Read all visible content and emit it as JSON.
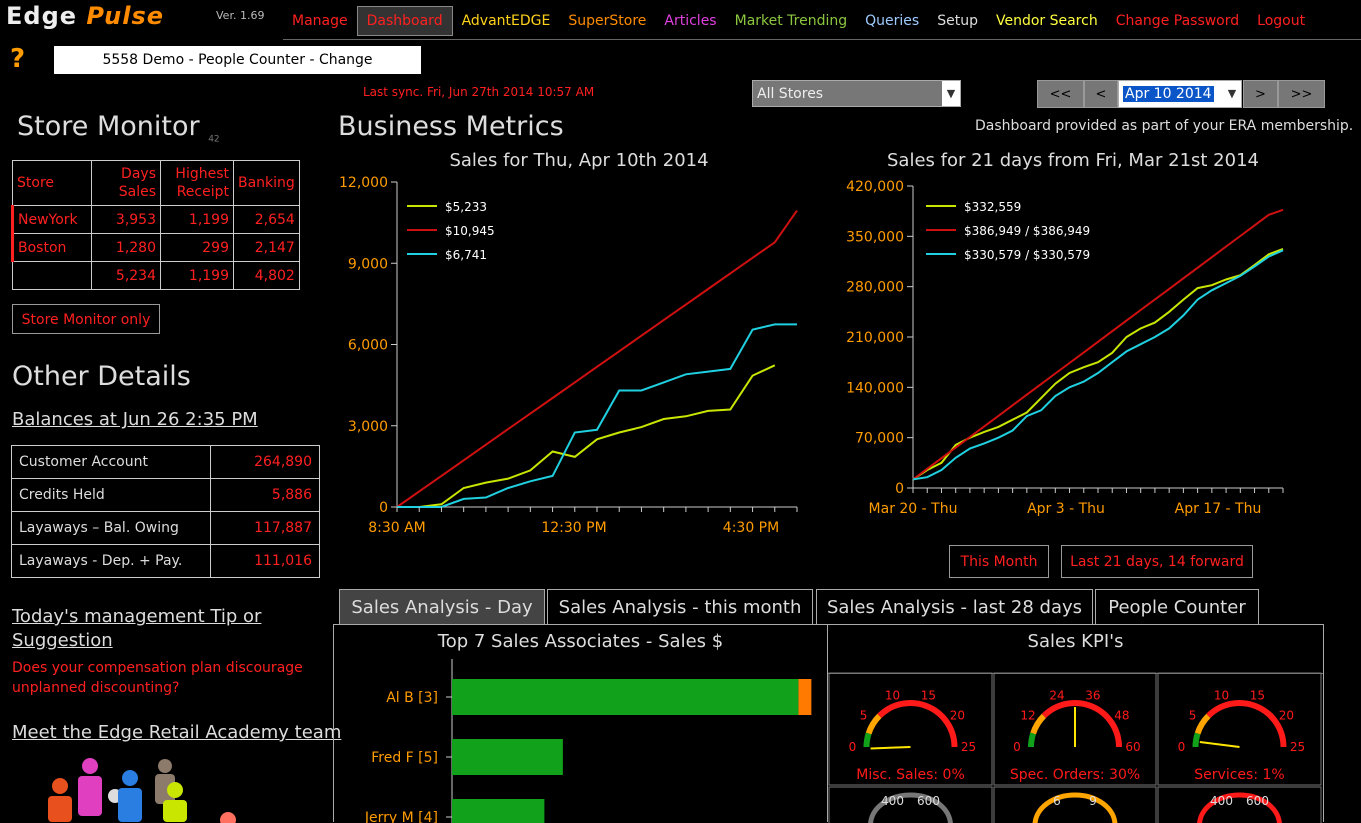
{
  "app": {
    "logo_a": "Edge",
    "logo_b": "Pulse",
    "version": "Ver. 1.69"
  },
  "nav": [
    {
      "label": "Manage",
      "color": "#ff2020"
    },
    {
      "label": "Dashboard",
      "color": "#ff2020"
    },
    {
      "label": "AdvantEDGE",
      "color": "#ffd21a"
    },
    {
      "label": "SuperStore",
      "color": "#ff8c00"
    },
    {
      "label": "Articles",
      "color": "#e040e0"
    },
    {
      "label": "Market Trending",
      "color": "#8cc63f"
    },
    {
      "label": "Queries",
      "color": "#9ecbff"
    },
    {
      "label": "Setup",
      "color": "#dddddd"
    },
    {
      "label": "Vendor Search",
      "color": "#ffff40"
    },
    {
      "label": "Change Password",
      "color": "#ff2020"
    },
    {
      "label": "Logout",
      "color": "#ff2020"
    }
  ],
  "header": {
    "store_name": "5558 Demo - People Counter - Change",
    "last_sync": "Last sync. Fri, Jun 27th 2014 10:57 AM",
    "store_select": "All Stores",
    "date_prev2": "<<",
    "date_prev": "<",
    "date_value": "Apr 10 2014",
    "date_next": ">",
    "date_next2": ">>",
    "era_info": "Dashboard provided as part of your ERA membership."
  },
  "store_monitor": {
    "title": "Store Monitor",
    "count": "42",
    "headers": [
      "Store",
      "Days Sales",
      "Highest Receipt",
      "Banking"
    ],
    "rows": [
      [
        "NewYork",
        "3,953",
        "1,199",
        "2,654"
      ],
      [
        "Boston",
        "1,280",
        "299",
        "2,147"
      ],
      [
        "",
        "5,234",
        "1,199",
        "4,802"
      ]
    ],
    "only_button": "Store Monitor only"
  },
  "other": {
    "title": "Other Details",
    "balances_link": "Balances at Jun 26 2:35 PM",
    "balances": [
      [
        "Customer Account",
        "264,890"
      ],
      [
        "Credits Held",
        "5,886"
      ],
      [
        "Layaways – Bal. Owing",
        "117,887"
      ],
      [
        "Layaways - Dep. + Pay.",
        "111,016"
      ]
    ],
    "tip_title": "Today's management Tip or Suggestion",
    "tip_text": "Does your compensation plan discourage unplanned discounting?",
    "team_link": "Meet the Edge Retail Academy team"
  },
  "metrics": {
    "title": "Business Metrics",
    "btn_month": "This Month",
    "btn_21": "Last 21 days, 14 forward"
  },
  "chart_data": [
    {
      "type": "line",
      "title": "Sales for Thu, Apr 10th 2014",
      "x": [
        "8:30",
        "9:00",
        "9:30",
        "10:00",
        "10:30",
        "11:00",
        "11:30",
        "12:00",
        "12:30",
        "13:00",
        "13:30",
        "14:00",
        "14:30",
        "15:00",
        "15:30",
        "16:00",
        "16:30",
        "17:00",
        "17:30"
      ],
      "x_ticks": [
        "8:30 AM",
        "12:30 PM",
        "4:30 PM"
      ],
      "ylim": [
        0,
        12000
      ],
      "y_ticks": [
        "0",
        "3,000",
        "6,000",
        "9,000",
        "12,000"
      ],
      "series": [
        {
          "name": "$5,233",
          "color": "#c8e600",
          "values": [
            0,
            0,
            100,
            700,
            900,
            1050,
            1350,
            2050,
            1850,
            2500,
            2750,
            2950,
            3250,
            3350,
            3550,
            3600,
            4850,
            5233,
            null
          ]
        },
        {
          "name": "$10,945",
          "color": "#d01010",
          "values": [
            0,
            575,
            1150,
            1725,
            2300,
            2875,
            3450,
            4025,
            4600,
            5175,
            5750,
            6325,
            6900,
            7475,
            8050,
            8625,
            9200,
            9775,
            10945
          ]
        },
        {
          "name": "$6,741",
          "color": "#20d0e0",
          "values": [
            0,
            0,
            0,
            300,
            350,
            700,
            950,
            1150,
            2750,
            2850,
            4300,
            4300,
            4600,
            4900,
            5000,
            5100,
            6550,
            6741,
            6741
          ]
        }
      ]
    },
    {
      "type": "line",
      "title": "Sales for 21 days from Fri, Mar 21st 2014",
      "x_ticks": [
        "Mar 20 - Thu",
        "Apr 3 - Thu",
        "Apr 17 - Thu"
      ],
      "ylim": [
        0,
        420000
      ],
      "y_ticks": [
        "0",
        "70,000",
        "140,000",
        "210,000",
        "280,000",
        "350,000",
        "420,000"
      ],
      "series": [
        {
          "name": "$332,559",
          "color": "#c8e600",
          "values": [
            12000,
            25000,
            35000,
            60000,
            70000,
            78000,
            85000,
            95000,
            105000,
            125000,
            145000,
            160000,
            168000,
            175000,
            188000,
            210000,
            222000,
            230000,
            245000,
            262000,
            278000,
            282000,
            290000,
            296000,
            310000,
            325000,
            332559
          ]
        },
        {
          "name": "$386,949 / $386,949",
          "color": "#d01010",
          "values": [
            12000,
            26700,
            41500,
            56200,
            70900,
            85600,
            100300,
            115000,
            129800,
            144500,
            159200,
            173900,
            188600,
            203300,
            218100,
            232800,
            247500,
            262200,
            276900,
            291600,
            306300,
            321000,
            335800,
            350500,
            365200,
            379900,
            386949
          ]
        },
        {
          "name": "$330,579 / $330,579",
          "color": "#20d0e0",
          "values": [
            12000,
            15000,
            25000,
            42000,
            55000,
            62000,
            70000,
            80000,
            100000,
            108000,
            128000,
            140000,
            148000,
            160000,
            175000,
            190000,
            200000,
            210000,
            222000,
            240000,
            262000,
            275000,
            285000,
            295000,
            308000,
            322000,
            330579
          ]
        }
      ]
    },
    {
      "type": "bar",
      "title": "Top 7 Sales Associates - Sales $",
      "categories": [
        "Al B [3]",
        "Fred F [5]",
        "Jerry M [4]"
      ],
      "values": [
        1500,
        480,
        400
      ],
      "overflow": [
        30,
        0,
        0
      ],
      "xlim": [
        0,
        1550
      ]
    }
  ],
  "tabs": [
    "Sales Analysis - Day",
    "Sales Analysis - this month",
    "Sales Analysis - last 28 days",
    "People Counter"
  ],
  "kpi": {
    "title": "Sales KPI's",
    "gauges": [
      {
        "label": "Misc. Sales: 0%",
        "ticks": [
          "0",
          "5",
          "10",
          "15",
          "20",
          "25"
        ],
        "max": 25,
        "value": 0
      },
      {
        "label": "Spec. Orders: 30%",
        "ticks": [
          "0",
          "12",
          "24",
          "36",
          "48",
          "60"
        ],
        "max": 60,
        "value": 30
      },
      {
        "label": "Services: 1%",
        "ticks": [
          "0",
          "5",
          "10",
          "15",
          "20",
          "25"
        ],
        "max": 25,
        "value": 1
      }
    ],
    "row2_ticks": [
      [
        "400",
        "600"
      ],
      [
        "6",
        "9"
      ],
      [
        "400",
        "600"
      ]
    ]
  }
}
